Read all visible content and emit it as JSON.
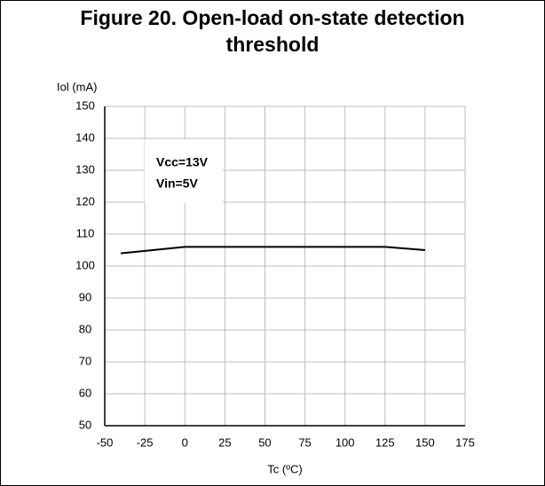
{
  "chart_data": {
    "type": "line",
    "title": [
      "Figure 20. Open-load on-state detection",
      "threshold"
    ],
    "y_label": "Iol (mA)",
    "x_label": "Tc (ºC)",
    "annotations": [
      "Vcc=13V",
      "Vin=5V"
    ],
    "x": [
      -40,
      0,
      125,
      150
    ],
    "series": [
      {
        "name": "Iol",
        "color": "#000000",
        "values": [
          104,
          106,
          106,
          105
        ]
      }
    ],
    "xlim": [
      -50,
      175
    ],
    "xticks": [
      -50,
      -25,
      0,
      25,
      50,
      75,
      100,
      125,
      150,
      175
    ],
    "ylim": [
      50,
      150
    ],
    "yticks": [
      50,
      60,
      70,
      80,
      90,
      100,
      110,
      120,
      130,
      140,
      150
    ],
    "grid": true
  }
}
